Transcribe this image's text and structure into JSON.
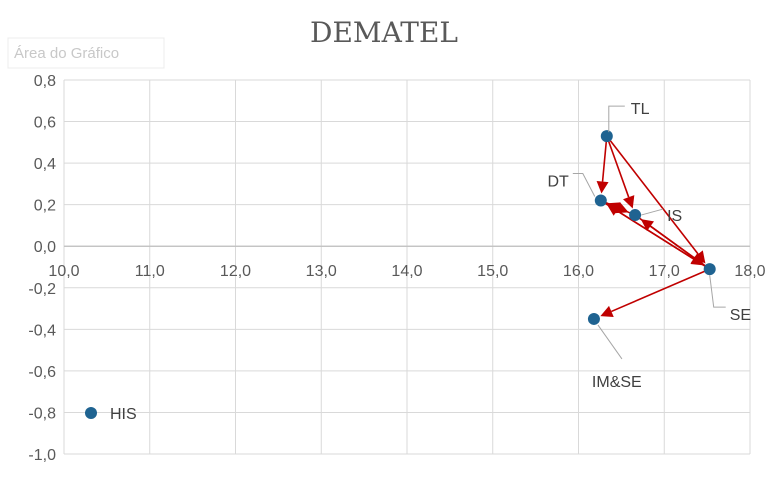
{
  "chart_data": {
    "type": "scatter",
    "title": "DEMATEL",
    "chart_area_label": "Área do Gráfico",
    "xlim": [
      10.0,
      18.0
    ],
    "ylim": [
      -1.0,
      0.8
    ],
    "x_ticks": [
      10.0,
      11.0,
      12.0,
      13.0,
      14.0,
      15.0,
      16.0,
      17.0,
      18.0
    ],
    "x_tick_labels": [
      "10,0",
      "11,0",
      "12,0",
      "13,0",
      "14,0",
      "15,0",
      "16,0",
      "17,0",
      "18,0"
    ],
    "y_ticks": [
      0.8,
      0.6,
      0.4,
      0.2,
      0.0,
      -0.2,
      -0.4,
      -0.6,
      -0.8,
      -1.0
    ],
    "y_tick_labels": [
      "0,8",
      "0,6",
      "0,4",
      "0,2",
      "0,0",
      "-0,2",
      "-0,4",
      "-0,6",
      "-0,8",
      "-1,0"
    ],
    "grid": true,
    "legend": {
      "position": "bottom-left",
      "label": "HIS"
    },
    "colors": {
      "point": "#1f6391",
      "arrow": "#c00000",
      "grid": "#d9d9d9",
      "leader": "#a6a6a6"
    },
    "points": [
      {
        "name": "TL",
        "x": 16.33,
        "y": 0.53
      },
      {
        "name": "DT",
        "x": 16.26,
        "y": 0.22
      },
      {
        "name": "IS",
        "x": 16.66,
        "y": 0.15
      },
      {
        "name": "SE",
        "x": 17.53,
        "y": -0.11
      },
      {
        "name": "IM&SE",
        "x": 16.18,
        "y": -0.35
      }
    ],
    "arrows": [
      {
        "from": "TL",
        "to": "DT"
      },
      {
        "from": "TL",
        "to": "IS"
      },
      {
        "from": "TL",
        "to": "SE"
      },
      {
        "from": "DT",
        "to": "IS"
      },
      {
        "from": "IS",
        "to": "DT"
      },
      {
        "from": "DT",
        "to": "SE"
      },
      {
        "from": "IS",
        "to": "SE"
      },
      {
        "from": "SE",
        "to": "DT"
      },
      {
        "from": "SE",
        "to": "IS"
      },
      {
        "from": "SE",
        "to": "IM&SE"
      }
    ]
  }
}
